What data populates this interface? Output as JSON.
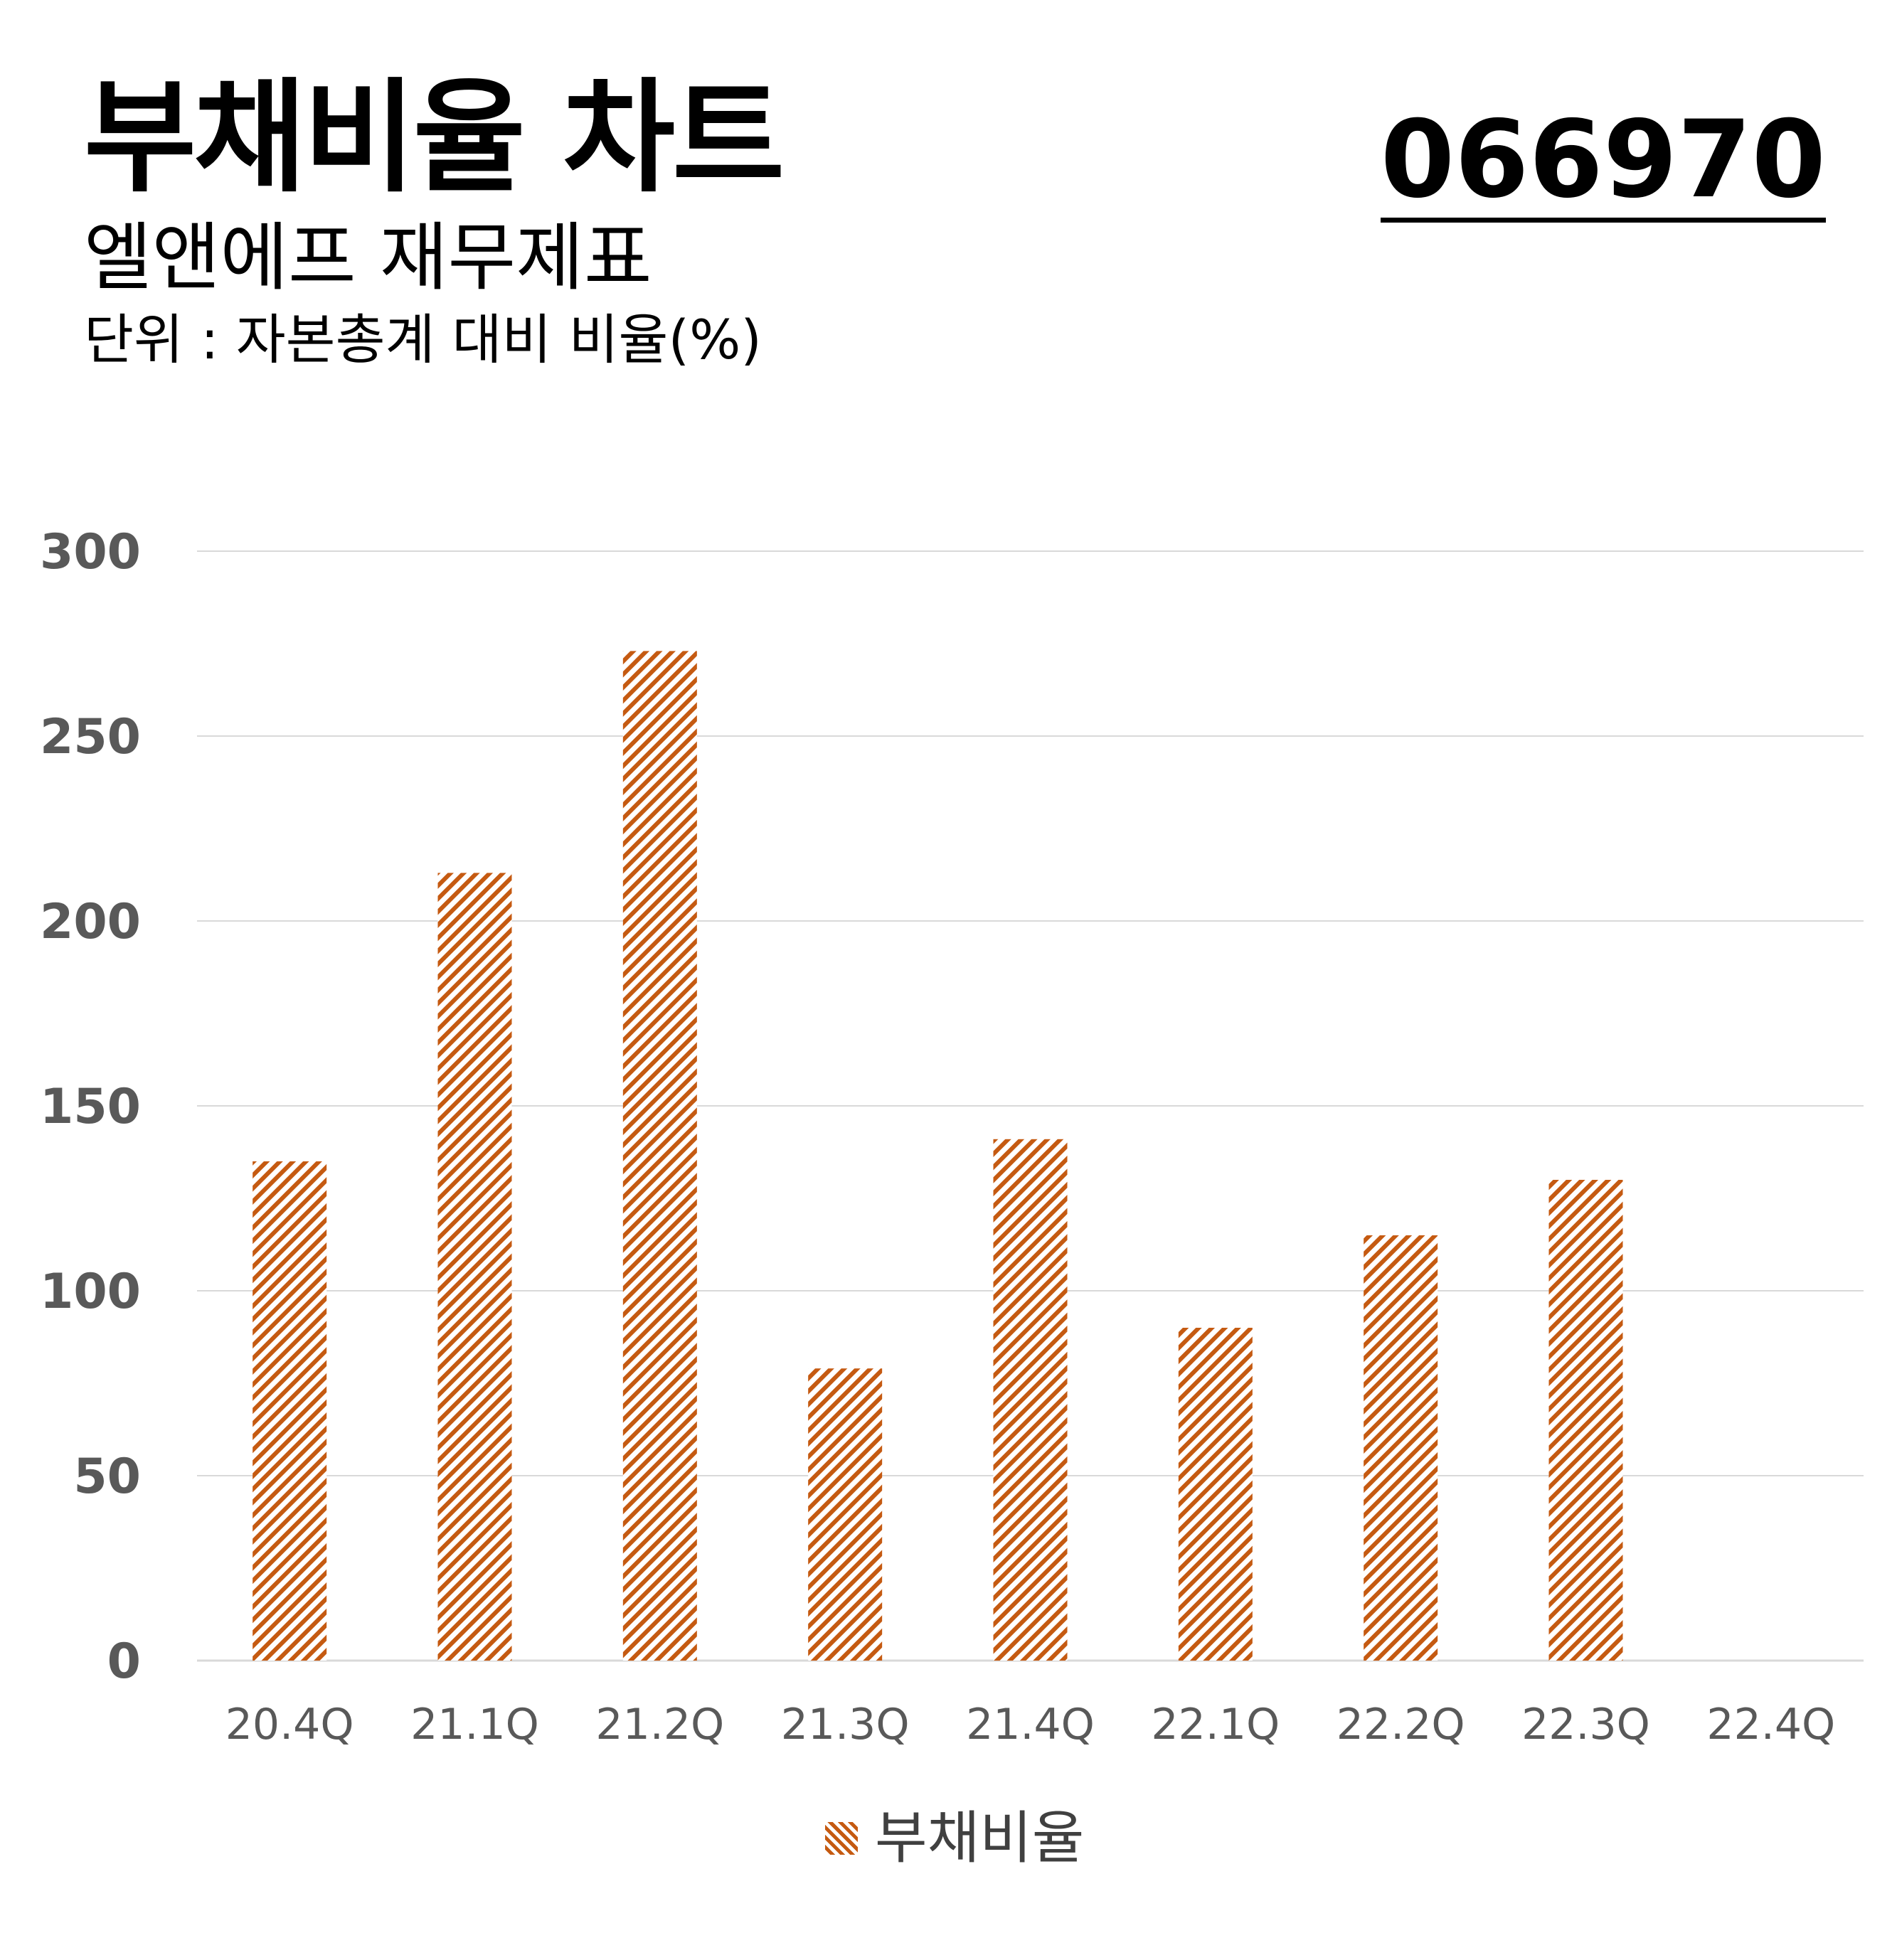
{
  "header": {
    "title": "부채비율 차트",
    "code": "066970",
    "subtitle": "엘앤에프 재무제표",
    "unit": "단위 : 자본총계 대비 비율(%)"
  },
  "colors": {
    "bar": "#c55a11",
    "grid": "#d9d9d9",
    "tick_text": "#595959"
  },
  "chart_data": {
    "type": "bar",
    "title": "부채비율 차트",
    "xlabel": "",
    "ylabel": "",
    "categories": [
      "20.4Q",
      "21.1Q",
      "21.2Q",
      "21.3Q",
      "21.4Q",
      "22.1Q",
      "22.2Q",
      "22.3Q",
      "22.4Q"
    ],
    "series": [
      {
        "name": "부채비율",
        "values": [
          135,
          213,
          273,
          79,
          141,
          90,
          115,
          130,
          null
        ]
      }
    ],
    "ylim": [
      0,
      300
    ],
    "yticks": [
      "0",
      "50",
      "100",
      "150",
      "200",
      "250",
      "300"
    ],
    "grid": true,
    "legend": "bottom-center",
    "bar_fill": "diagonal-hatch"
  }
}
